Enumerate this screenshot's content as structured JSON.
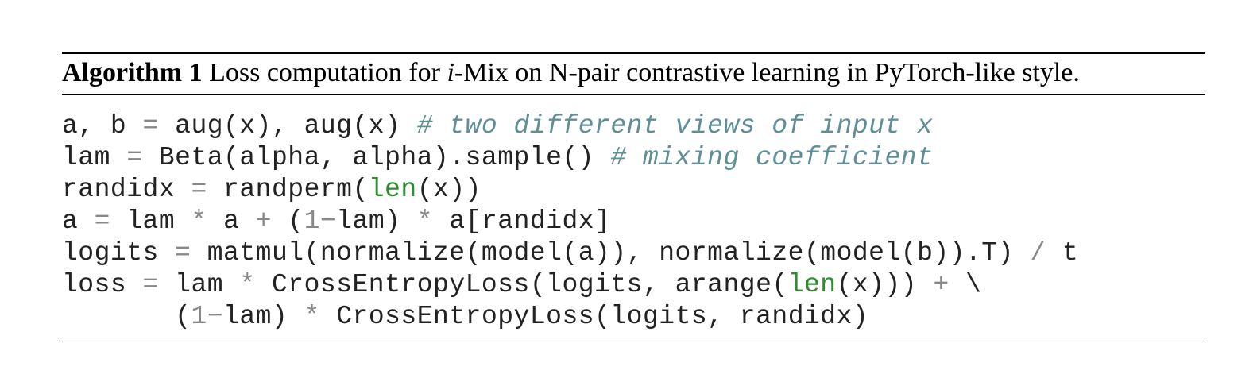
{
  "algorithm": {
    "label": "Algorithm 1",
    "caption_pre": " Loss computation for ",
    "caption_ital": "i",
    "caption_post": "-Mix on N-pair contrastive learning in PyTorch-like style."
  },
  "code": {
    "line1": {
      "a": "a, b ",
      "eq": "=",
      "b": " aug(x), aug(x) ",
      "comment": "# two different views of input x"
    },
    "line2": {
      "a": "lam ",
      "eq": "=",
      "b": " Beta(alpha, alpha).sample() ",
      "comment": "# mixing coefficient"
    },
    "line3": {
      "a": "randidx ",
      "eq": "=",
      "b": " randperm(",
      "fn": "len",
      "c": "(x))"
    },
    "line4": {
      "a": "a ",
      "eq": "=",
      "b": " lam ",
      "star": "*",
      "c": " a ",
      "plus": "+",
      "d": " (",
      "one": "1",
      "minus": "−",
      "e": "lam) ",
      "star2": "*",
      "f": " a[randidx]"
    },
    "line5": {
      "a": "logits ",
      "eq": "=",
      "b": " matmul(normalize(model(a)), normalize(model(b)).T) ",
      "slash": "/",
      "c": " t"
    },
    "line6": {
      "a": "loss ",
      "eq": "=",
      "b": " lam ",
      "star": "*",
      "c": " CrossEntropyLoss(logits, arange(",
      "fn": "len",
      "d": "(x))) ",
      "plus": "+",
      "e": " \\"
    },
    "line7": {
      "indent": "       (",
      "one": "1",
      "minus": "−",
      "a": "lam) ",
      "star": "*",
      "b": " CrossEntropyLoss(logits, randidx)"
    }
  }
}
